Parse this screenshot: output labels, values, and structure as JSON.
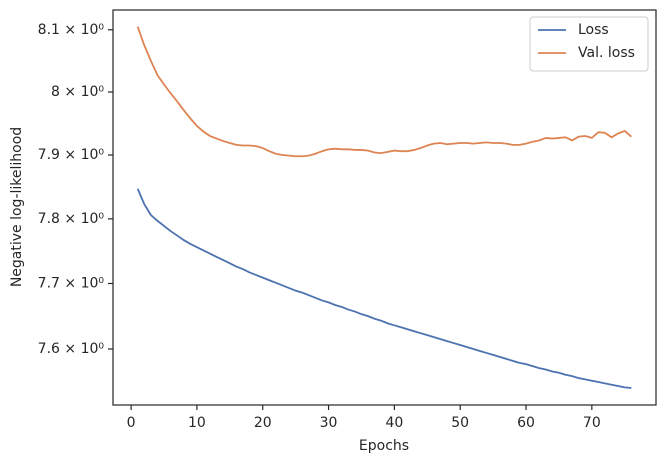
{
  "chart_data": {
    "type": "line",
    "xlabel": "Epochs",
    "ylabel": "Negative log-likelihood",
    "x": [
      1,
      2,
      3,
      4,
      5,
      6,
      7,
      8,
      9,
      10,
      11,
      12,
      13,
      14,
      15,
      16,
      17,
      18,
      19,
      20,
      21,
      22,
      23,
      24,
      25,
      26,
      27,
      28,
      29,
      30,
      31,
      32,
      33,
      34,
      35,
      36,
      37,
      38,
      39,
      40,
      41,
      42,
      43,
      44,
      45,
      46,
      47,
      48,
      49,
      50,
      51,
      52,
      53,
      54,
      55,
      56,
      57,
      58,
      59,
      60,
      61,
      62,
      63,
      64,
      65,
      66,
      67,
      68,
      69,
      70,
      71,
      72,
      73,
      74,
      75,
      76
    ],
    "series": [
      {
        "name": "Loss",
        "color": "#4c72b0",
        "values": [
          7.847,
          7.823,
          7.806,
          7.797,
          7.789,
          7.781,
          7.774,
          7.767,
          7.761,
          7.756,
          7.751,
          7.746,
          7.741,
          7.736,
          7.731,
          7.726,
          7.722,
          7.717,
          7.713,
          7.709,
          7.705,
          7.701,
          7.697,
          7.693,
          7.689,
          7.686,
          7.682,
          7.678,
          7.674,
          7.671,
          7.667,
          7.664,
          7.66,
          7.657,
          7.653,
          7.65,
          7.646,
          7.643,
          7.639,
          7.636,
          7.633,
          7.63,
          7.627,
          7.624,
          7.621,
          7.618,
          7.615,
          7.612,
          7.609,
          7.606,
          7.603,
          7.6,
          7.597,
          7.594,
          7.591,
          7.588,
          7.585,
          7.582,
          7.579,
          7.577,
          7.574,
          7.571,
          7.569,
          7.566,
          7.564,
          7.561,
          7.559,
          7.556,
          7.554,
          7.552,
          7.55,
          7.548,
          7.546,
          7.544,
          7.542,
          7.541
        ]
      },
      {
        "name": "Val. loss",
        "color": "#dd8452",
        "values": [
          8.105,
          8.075,
          8.05,
          8.027,
          8.012,
          7.998,
          7.985,
          7.971,
          7.958,
          7.946,
          7.937,
          7.93,
          7.926,
          7.922,
          7.919,
          7.916,
          7.915,
          7.915,
          7.914,
          7.911,
          7.906,
          7.902,
          7.9,
          7.899,
          7.898,
          7.898,
          7.899,
          7.902,
          7.906,
          7.909,
          7.91,
          7.909,
          7.909,
          7.908,
          7.908,
          7.907,
          7.904,
          7.903,
          7.905,
          7.907,
          7.906,
          7.906,
          7.908,
          7.911,
          7.915,
          7.918,
          7.919,
          7.917,
          7.918,
          7.919,
          7.919,
          7.918,
          7.919,
          7.92,
          7.919,
          7.919,
          7.918,
          7.916,
          7.916,
          7.918,
          7.921,
          7.923,
          7.927,
          7.926,
          7.927,
          7.928,
          7.923,
          7.929,
          7.93,
          7.927,
          7.936,
          7.935,
          7.928,
          7.934,
          7.938,
          7.929
        ]
      }
    ],
    "xlim": [
      -2.75,
      79.75
    ],
    "xticks": [
      0,
      10,
      20,
      30,
      40,
      50,
      60,
      70
    ],
    "ylim": [
      7.5155,
      8.132
    ],
    "yscale": "log",
    "yticks": [
      {
        "value": 7.6,
        "label": "7.6 × 10⁰"
      },
      {
        "value": 7.7,
        "label": "7.7 × 10⁰"
      },
      {
        "value": 7.8,
        "label": "7.8 × 10⁰"
      },
      {
        "value": 7.9,
        "label": "7.9 × 10⁰"
      },
      {
        "value": 8.0,
        "label": "8 × 10⁰"
      },
      {
        "value": 8.1,
        "label": "8.1 × 10⁰"
      }
    ],
    "grid": false,
    "legend": "upper right"
  }
}
